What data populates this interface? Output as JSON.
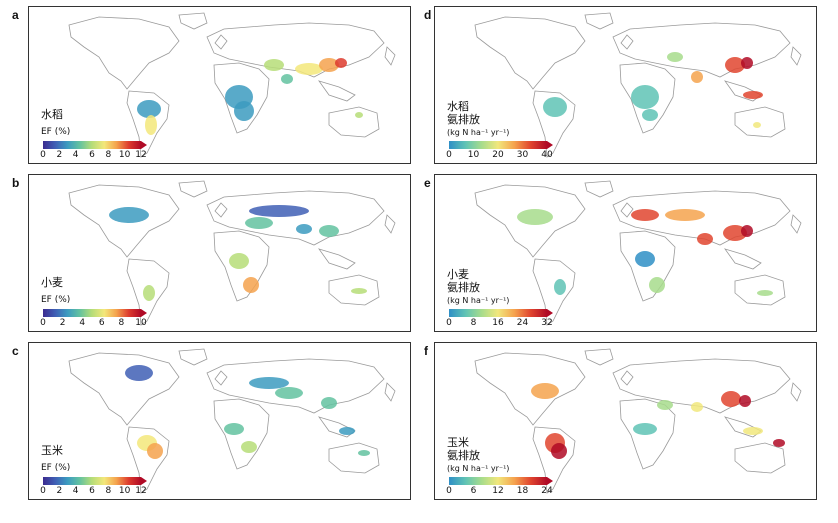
{
  "panels": [
    {
      "letter": "a",
      "crop": "水稻",
      "label": "EF (%)",
      "unit_sup1": "",
      "ticks": [
        "0",
        "2",
        "4",
        "6",
        "8",
        "10",
        "12"
      ],
      "scale": "ef"
    },
    {
      "letter": "d",
      "crop": "水稻",
      "label": "氨排放",
      "unit": "(kg N ha⁻¹ yr⁻¹)",
      "ticks": [
        "0",
        "10",
        "20",
        "30",
        "40"
      ],
      "scale": "nh3"
    },
    {
      "letter": "b",
      "crop": "小麦",
      "label": "EF (%)",
      "ticks": [
        "0",
        "2",
        "4",
        "6",
        "8",
        "10"
      ],
      "scale": "ef"
    },
    {
      "letter": "e",
      "crop": "小麦",
      "label": "氨排放",
      "unit": "(kg N ha⁻¹ yr⁻¹)",
      "ticks": [
        "0",
        "8",
        "16",
        "24",
        "32"
      ],
      "scale": "nh3"
    },
    {
      "letter": "c",
      "crop": "玉米",
      "label": "EF (%)",
      "ticks": [
        "0",
        "2",
        "4",
        "6",
        "8",
        "10",
        "12"
      ],
      "scale": "ef"
    },
    {
      "letter": "f",
      "crop": "玉米",
      "label": "氨排放",
      "unit": "(kg N ha⁻¹ yr⁻¹)",
      "ticks": [
        "0",
        "6",
        "12",
        "18",
        "24"
      ],
      "scale": "nh3"
    }
  ],
  "colors": {
    "ef_scale": [
      "#3b2b8f",
      "#3f5fb5",
      "#3c9bc0",
      "#63c2a0",
      "#b6dd78",
      "#f3e77a",
      "#f4a24d",
      "#dd3b2e",
      "#b00a26"
    ],
    "nh3_scale": [
      "#2f8fc6",
      "#5fc3b5",
      "#a7dc8c",
      "#f1e77c",
      "#f5a34e",
      "#e0452f",
      "#b00a26"
    ],
    "land_outline": "#9a9a9a",
    "border": "#333333"
  }
}
